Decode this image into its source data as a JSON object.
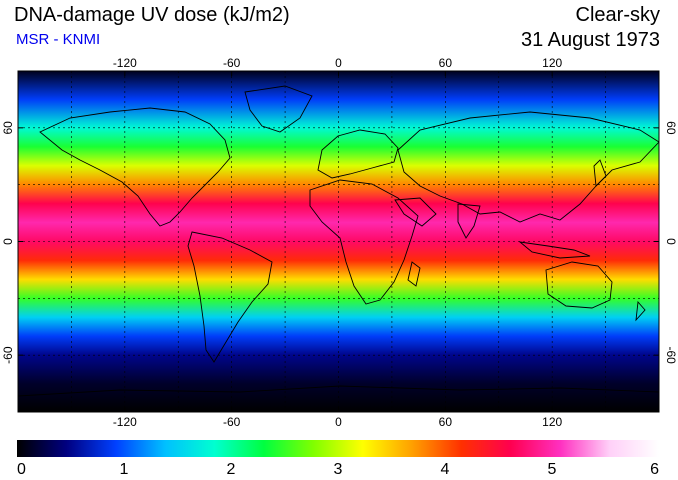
{
  "header": {
    "title": "DNA-damage UV dose (kJ/m2)",
    "source": "MSR - KNMI",
    "condition": "Clear-sky",
    "date": "31 August 1973"
  },
  "map": {
    "projection": "equirectangular",
    "lon_range": [
      -180,
      180
    ],
    "lat_range": [
      -90,
      90
    ],
    "lon_ticks": [
      -120,
      -60,
      0,
      60,
      120
    ],
    "lat_ticks": [
      -60,
      0,
      60
    ],
    "tick_labels_lon": [
      "-120",
      "-60",
      "0",
      "60",
      "120"
    ],
    "tick_labels_lat": [
      "-60",
      "0",
      "60"
    ],
    "gridlines": "dashed",
    "grid_lon": [
      -150,
      -120,
      -90,
      -60,
      -30,
      0,
      30,
      60,
      90,
      120,
      150
    ],
    "grid_lat": [
      -60,
      -30,
      0,
      30,
      60
    ],
    "coastlines": true
  },
  "colorbar": {
    "min": 0,
    "max": 6,
    "tick_labels": [
      "0",
      "1",
      "2",
      "3",
      "4",
      "5",
      "6"
    ],
    "colors": [
      "#000000",
      "#000080",
      "#0040ff",
      "#00c0ff",
      "#00ffd0",
      "#00ff40",
      "#80ff00",
      "#ffff00",
      "#ffa000",
      "#ff3000",
      "#ff0050",
      "#ff30c0",
      "#ffd0f8",
      "#ffffff"
    ]
  },
  "uv_profile": {
    "lat": [
      90,
      75,
      60,
      50,
      40,
      30,
      20,
      10,
      0,
      -10,
      -20,
      -30,
      -40,
      -50,
      -60,
      -75,
      -90
    ],
    "dose": [
      0.1,
      0.9,
      1.8,
      2.4,
      3.1,
      3.8,
      4.6,
      5.0,
      4.7,
      4.2,
      3.4,
      2.5,
      1.5,
      0.9,
      0.5,
      0.15,
      0.0
    ]
  }
}
